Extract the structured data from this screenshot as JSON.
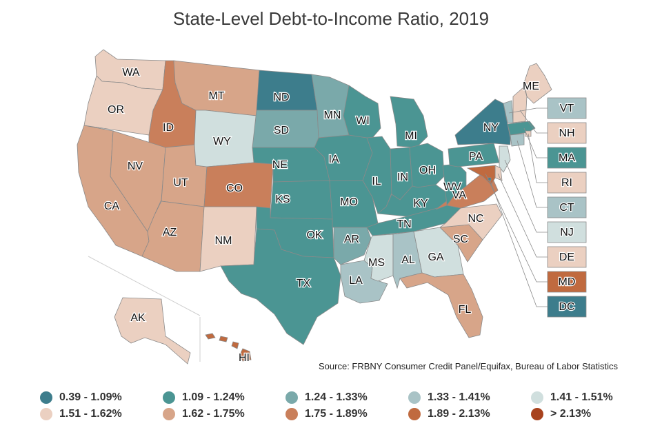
{
  "title": "State-Level Debt-to-Income Ratio, 2019",
  "source": "Source: FRBNY Consumer Credit Panel/Equifax, Bureau of Labor Statistics",
  "colors": {
    "c1": "#3d7d8c",
    "c2": "#4b9593",
    "c3": "#7aa9aa",
    "c4": "#a9c3c6",
    "c5": "#d0dfde",
    "c6": "#ebd0c1",
    "c7": "#d7a589",
    "c8": "#c97f5b",
    "c9": "#c06a3f",
    "c10": "#a8421d"
  },
  "legend": [
    {
      "label": "0.39 - 1.09%",
      "color": "#3d7d8c"
    },
    {
      "label": "1.09 - 1.24%",
      "color": "#4b9593"
    },
    {
      "label": "1.24 - 1.33%",
      "color": "#7aa9aa"
    },
    {
      "label": "1.33 - 1.41%",
      "color": "#a9c3c6"
    },
    {
      "label": "1.41 - 1.51%",
      "color": "#d0dfde"
    },
    {
      "label": "1.51 - 1.62%",
      "color": "#ebd0c1"
    },
    {
      "label": "1.62 - 1.75%",
      "color": "#d7a589"
    },
    {
      "label": "1.75 - 1.89%",
      "color": "#c97f5b"
    },
    {
      "label": "1.89 - 2.13%",
      "color": "#c06a3f"
    },
    {
      "label": "> 2.13%",
      "color": "#a8421d"
    }
  ],
  "states": [
    {
      "code": "WA",
      "bin": 6
    },
    {
      "code": "OR",
      "bin": 6
    },
    {
      "code": "CA",
      "bin": 7
    },
    {
      "code": "ID",
      "bin": 8
    },
    {
      "code": "NV",
      "bin": 7
    },
    {
      "code": "UT",
      "bin": 7
    },
    {
      "code": "AZ",
      "bin": 7
    },
    {
      "code": "MT",
      "bin": 7
    },
    {
      "code": "WY",
      "bin": 5
    },
    {
      "code": "CO",
      "bin": 8
    },
    {
      "code": "NM",
      "bin": 6
    },
    {
      "code": "ND",
      "bin": 1
    },
    {
      "code": "SD",
      "bin": 3
    },
    {
      "code": "NE",
      "bin": 2
    },
    {
      "code": "KS",
      "bin": 2
    },
    {
      "code": "OK",
      "bin": 2
    },
    {
      "code": "TX",
      "bin": 2
    },
    {
      "code": "MN",
      "bin": 3
    },
    {
      "code": "IA",
      "bin": 2
    },
    {
      "code": "MO",
      "bin": 2
    },
    {
      "code": "AR",
      "bin": 3
    },
    {
      "code": "LA",
      "bin": 4
    },
    {
      "code": "WI",
      "bin": 2
    },
    {
      "code": "IL",
      "bin": 2
    },
    {
      "code": "MI",
      "bin": 2
    },
    {
      "code": "IN",
      "bin": 2
    },
    {
      "code": "OH",
      "bin": 2
    },
    {
      "code": "KY",
      "bin": 2
    },
    {
      "code": "TN",
      "bin": 2
    },
    {
      "code": "MS",
      "bin": 5
    },
    {
      "code": "AL",
      "bin": 4
    },
    {
      "code": "GA",
      "bin": 5
    },
    {
      "code": "FL",
      "bin": 7
    },
    {
      "code": "SC",
      "bin": 7
    },
    {
      "code": "NC",
      "bin": 6
    },
    {
      "code": "VA",
      "bin": 8
    },
    {
      "code": "WV",
      "bin": 2
    },
    {
      "code": "PA",
      "bin": 2
    },
    {
      "code": "NY",
      "bin": 1
    },
    {
      "code": "ME",
      "bin": 6
    },
    {
      "code": "AK",
      "bin": 6
    },
    {
      "code": "HI",
      "bin": 9
    }
  ],
  "small_states": [
    {
      "code": "VT",
      "bin": 4
    },
    {
      "code": "NH",
      "bin": 6
    },
    {
      "code": "MA",
      "bin": 2
    },
    {
      "code": "RI",
      "bin": 6
    },
    {
      "code": "CT",
      "bin": 4
    },
    {
      "code": "NJ",
      "bin": 5
    },
    {
      "code": "DE",
      "bin": 6
    },
    {
      "code": "MD",
      "bin": 9
    },
    {
      "code": "DC",
      "bin": 1
    }
  ]
}
